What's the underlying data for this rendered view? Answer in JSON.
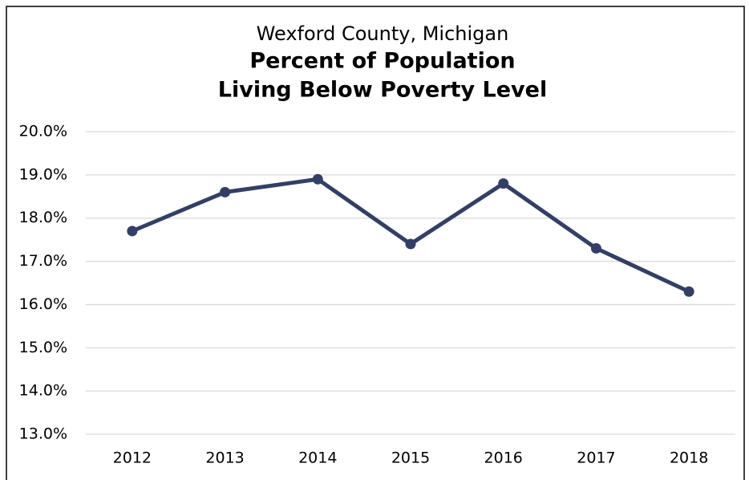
{
  "chart_data": {
    "type": "line",
    "subtitle": "Wexford County, Michigan",
    "title": [
      "Percent of Population",
      "Living Below Poverty Level"
    ],
    "categories": [
      "2012",
      "2013",
      "2014",
      "2015",
      "2016",
      "2017",
      "2018"
    ],
    "series": [
      {
        "color": "#333f66",
        "values": [
          17.7,
          18.6,
          18.9,
          17.4,
          18.8,
          17.3,
          16.3
        ]
      }
    ],
    "ylim": [
      13,
      20
    ],
    "yticks": [
      {
        "value": 13,
        "label": "13.0%"
      },
      {
        "value": 14,
        "label": "14.0%"
      },
      {
        "value": 15,
        "label": "15.0%"
      },
      {
        "value": 16,
        "label": "16.0%"
      },
      {
        "value": 17,
        "label": "17.0%"
      },
      {
        "value": 18,
        "label": "18.0%"
      },
      {
        "value": 19,
        "label": "19.0%"
      },
      {
        "value": 20,
        "label": "20.0%"
      }
    ],
    "grid": true
  }
}
